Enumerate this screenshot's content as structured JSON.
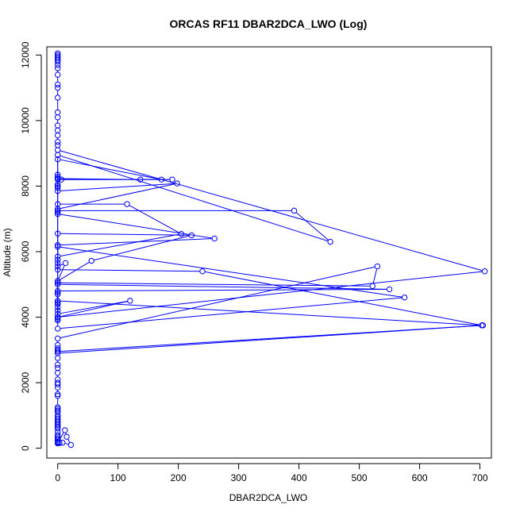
{
  "chart_data": {
    "type": "line",
    "title": "ORCAS RF11 DBAR2DCA_LWO (Log)",
    "xlabel": "DBAR2DCA_LWO",
    "ylabel": "Altitude (m)",
    "xlim": [
      -18,
      719
    ],
    "ylim": [
      -300,
      12250
    ],
    "xticks": [
      0,
      100,
      200,
      300,
      400,
      500,
      600,
      700
    ],
    "yticks": [
      0,
      2000,
      4000,
      6000,
      8000,
      10000,
      12000
    ],
    "grid": false,
    "color": "#0000ff",
    "series": [
      {
        "points": [
          [
            0,
            12050
          ],
          [
            0,
            12000
          ],
          [
            0,
            11950
          ],
          [
            0,
            11900
          ],
          [
            0,
            11850
          ],
          [
            0,
            11800
          ],
          [
            0,
            11700
          ],
          [
            0,
            11600
          ],
          [
            0,
            11400
          ],
          [
            0,
            11100
          ],
          [
            0,
            11000
          ],
          [
            0,
            10700
          ],
          [
            0,
            10250
          ],
          [
            0,
            10100
          ],
          [
            0,
            9850
          ],
          [
            0,
            9700
          ],
          [
            0,
            9550
          ],
          [
            0,
            9350
          ],
          [
            0,
            9250
          ],
          [
            0,
            9100
          ],
          [
            708,
            5400
          ],
          [
            0,
            4000
          ],
          [
            0,
            3950
          ],
          [
            0,
            3900
          ],
          [
            0,
            8950
          ],
          [
            452,
            6300
          ],
          [
            392,
            7250
          ],
          [
            0,
            7250
          ],
          [
            0,
            8820
          ],
          [
            172,
            8200
          ],
          [
            6,
            8200
          ],
          [
            0,
            8350
          ],
          [
            0,
            8280
          ],
          [
            0,
            8230
          ],
          [
            137,
            8200
          ],
          [
            190,
            8200
          ],
          [
            0,
            8200
          ],
          [
            0,
            8050
          ],
          [
            0,
            8000
          ],
          [
            0,
            7950
          ],
          [
            0,
            7850
          ],
          [
            198,
            8080
          ],
          [
            0,
            7300
          ],
          [
            0,
            7200
          ],
          [
            0,
            7150
          ],
          [
            260,
            6400
          ],
          [
            0,
            6200
          ],
          [
            0,
            6150
          ],
          [
            575,
            4600
          ],
          [
            0,
            3650
          ],
          [
            0,
            7450
          ],
          [
            115,
            7450
          ],
          [
            205,
            6540
          ],
          [
            0,
            5850
          ],
          [
            0,
            5750
          ],
          [
            0,
            5650
          ],
          [
            0,
            5550
          ],
          [
            13,
            5650
          ],
          [
            0,
            5100
          ],
          [
            0,
            5000
          ],
          [
            550,
            4850
          ],
          [
            0,
            4800
          ],
          [
            0,
            4750
          ],
          [
            0,
            4700
          ],
          [
            0,
            4450
          ],
          [
            0,
            4400
          ],
          [
            0,
            4300
          ],
          [
            0,
            4200
          ],
          [
            0,
            4100
          ],
          [
            120,
            4500
          ],
          [
            0,
            4000
          ],
          [
            0,
            4500
          ],
          [
            703,
            3750
          ],
          [
            240,
            5400
          ],
          [
            0,
            5450
          ],
          [
            0,
            6550
          ],
          [
            222,
            6500
          ],
          [
            56,
            5720
          ],
          [
            0,
            5100
          ],
          [
            0,
            5050
          ],
          [
            522,
            4950
          ],
          [
            530,
            5550
          ],
          [
            0,
            3350
          ],
          [
            0,
            3150
          ],
          [
            0,
            3050
          ],
          [
            0,
            3000
          ],
          [
            0,
            2950
          ],
          [
            0,
            2950
          ],
          [
            705,
            3750
          ],
          [
            0,
            2900
          ],
          [
            0,
            2750
          ],
          [
            0,
            2550
          ],
          [
            0,
            2450
          ],
          [
            0,
            2300
          ],
          [
            0,
            2100
          ],
          [
            0,
            2000
          ],
          [
            0,
            1950
          ],
          [
            0,
            1850
          ],
          [
            0,
            1650
          ],
          [
            0,
            1600
          ],
          [
            0,
            1250
          ],
          [
            0,
            1200
          ],
          [
            0,
            1150
          ],
          [
            0,
            1100
          ],
          [
            0,
            1000
          ],
          [
            0,
            950
          ],
          [
            0,
            900
          ],
          [
            0,
            850
          ],
          [
            0,
            800
          ],
          [
            0,
            750
          ],
          [
            0,
            700
          ],
          [
            0,
            650
          ],
          [
            0,
            600
          ],
          [
            0,
            500
          ],
          [
            0,
            400
          ],
          [
            0,
            350
          ],
          [
            0,
            300
          ],
          [
            0,
            250
          ],
          [
            0,
            200
          ],
          [
            0,
            180
          ],
          [
            0,
            170
          ],
          [
            0,
            160
          ],
          [
            0,
            150
          ],
          [
            12,
            550
          ],
          [
            15,
            350
          ],
          [
            22,
            100
          ],
          [
            8,
            170
          ],
          [
            3,
            160
          ],
          [
            0,
            150
          ]
        ]
      }
    ]
  }
}
